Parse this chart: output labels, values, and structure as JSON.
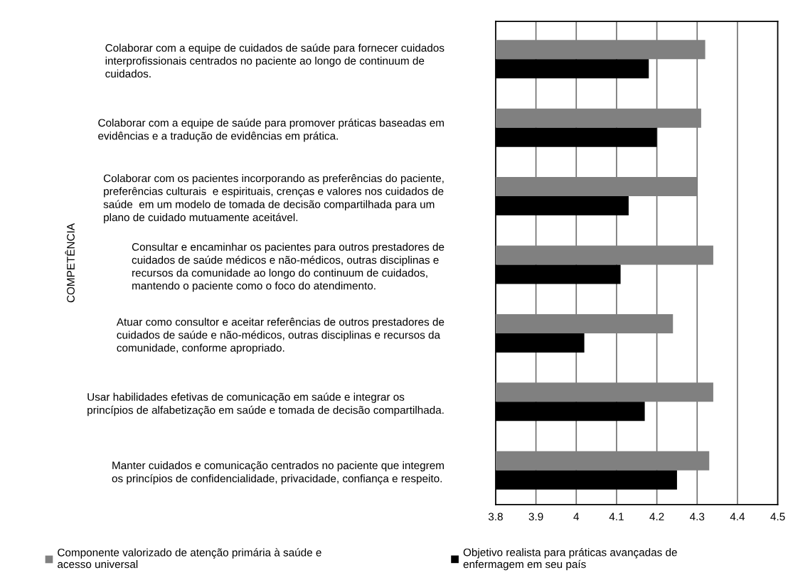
{
  "chart_data": {
    "type": "bar",
    "orientation": "horizontal",
    "ylabel": "COMPETÊNCIA",
    "categories": [
      "Colaborar com a equipe de cuidados de saúde para fornecer cuidados\ninterprofissionais centrados no paciente ao longo de continuum de\ncuidados.",
      "Colaborar com a equipe de saúde para promover práticas baseadas em\nevidências e a tradução de evidências em prática.",
      "Colaborar com os pacientes incorporando as preferências do paciente,\npreferências culturais  e espirituais, crenças e valores nos cuidados de\nsaúde  em um modelo de tomada de decisão compartilhada para um\nplano de cuidado mutuamente aceitável.",
      "Consultar e encaminhar os pacientes para outros prestadores de\ncuidados de saúde médicos e não-médicos, outras disciplinas e\nrecursos da comunidade ao longo do continuum de cuidados,\nmantendo o paciente como o foco do atendimento.",
      "Atuar como consultor e aceitar referências de outros prestadores de\ncuidados de saúde e não-médicos, outras disciplinas e recursos da\ncomunidade, conforme apropriado.",
      "Usar habilidades efetivas de comunicação em saúde e integrar os\nprincípios de alfabetização em saúde e tomada de decisão compartilhada.",
      "Manter cuidados e comunicação centrados no paciente que integrem\nos princípios de confidencialidade, privacidade, confiança e respeito."
    ],
    "series": [
      {
        "name": "Componente valorizado de atenção primária à saúde e\nacesso universal",
        "color": "#808080",
        "values": [
          4.32,
          4.31,
          4.3,
          4.34,
          4.24,
          4.34,
          4.33
        ]
      },
      {
        "name": "Objetivo realista para práticas avançadas de\nenfermagem em seu país",
        "color": "#000000",
        "values": [
          4.18,
          4.2,
          4.13,
          4.11,
          4.02,
          4.17,
          4.25
        ]
      }
    ],
    "xlim": [
      3.8,
      4.5
    ],
    "xticks": [
      3.8,
      3.9,
      4,
      4.1,
      4.2,
      4.3,
      4.4,
      4.5
    ],
    "grid": "x",
    "legend": "bottom"
  }
}
